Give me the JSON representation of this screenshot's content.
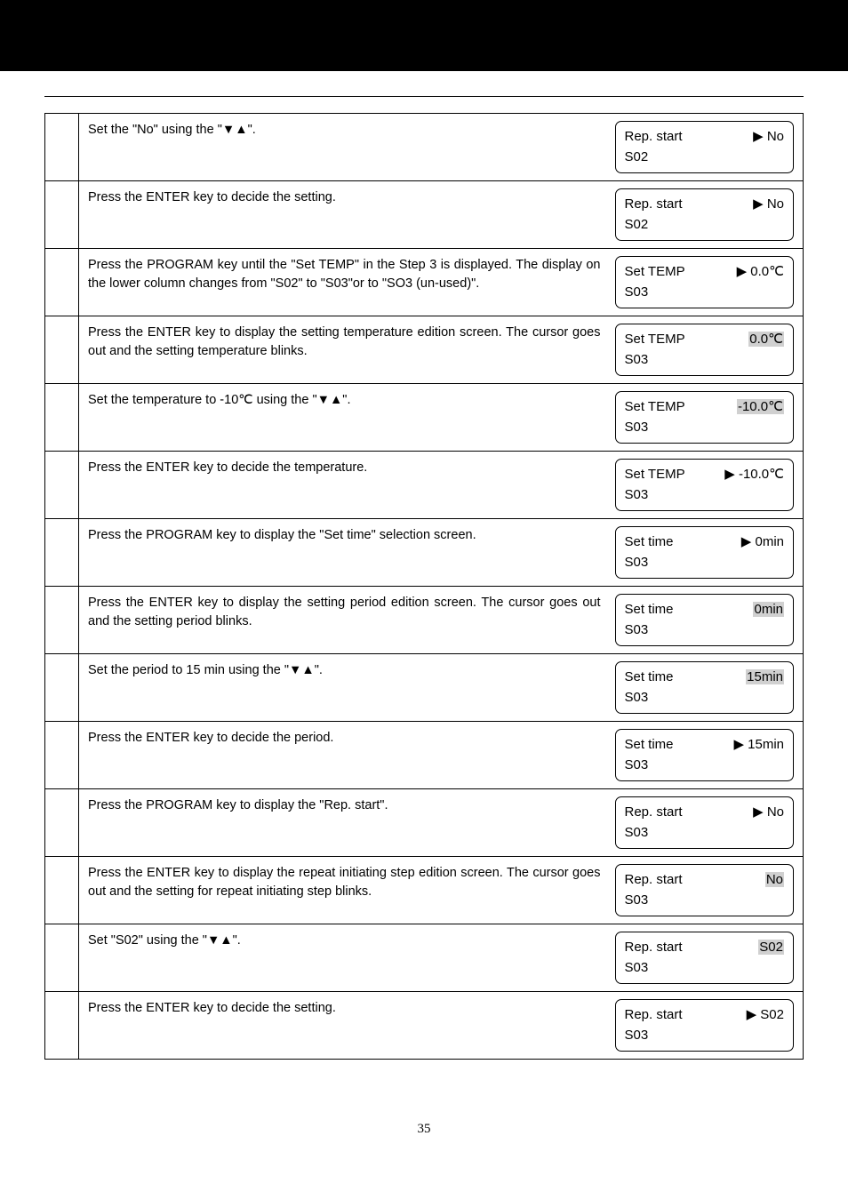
{
  "page_number": "35",
  "rows": [
    {
      "instruction": "Set the \"No\" using the \"▼▲\".",
      "display_line1_left": "Rep. start",
      "display_line1_right": "▶ No",
      "display_line2": "S02"
    },
    {
      "instruction": "Press the ENTER key to decide the setting.",
      "display_line1_left": "Rep. start",
      "display_line1_right": "▶ No",
      "display_line2": "S02"
    },
    {
      "instruction": "Press the PROGRAM key until the \"Set TEMP\" in the Step 3 is displayed.   The display on the lower column changes from \"S02\" to \"S03\"or to \"SO3 (un-used)\".",
      "display_line1_left": "Set TEMP",
      "display_line1_right": "▶ 0.0℃",
      "display_line2": "S03"
    },
    {
      "instruction": "Press the ENTER key to display the setting temperature edition screen.   The cursor goes out and the setting temperature blinks.",
      "display_line1_left": "Set TEMP",
      "display_line1_right_hl": "0.0℃",
      "display_line2": "S03"
    },
    {
      "instruction": "Set the temperature to -10℃  using the \"▼▲\".",
      "display_line1_left": "Set TEMP",
      "display_line1_right_hl": "-10.0℃",
      "display_line2": "S03"
    },
    {
      "instruction": "Press the ENTER key to decide the temperature.",
      "display_line1_left": "Set TEMP",
      "display_line1_right": "▶ -10.0℃",
      "display_line2": "S03"
    },
    {
      "instruction": "Press the PROGRAM key to display the \"Set time\" selection screen.",
      "display_line1_left": "Set time",
      "display_line1_right": "▶ 0min",
      "display_line2": "S03"
    },
    {
      "instruction": "Press the ENTER key to display the setting period edition screen. The cursor goes out and the setting period blinks.",
      "display_line1_left": "Set time",
      "display_line1_right_hl": "0min",
      "display_line2": "S03"
    },
    {
      "instruction": "Set the period to 15 min using the \"▼▲\".",
      "display_line1_left": "Set time",
      "display_line1_right_hl": "15min",
      "display_line2": "S03"
    },
    {
      "instruction": "Press the ENTER key to decide the period.",
      "display_line1_left": "Set time",
      "display_line1_right": "▶ 15min",
      "display_line2": "S03"
    },
    {
      "instruction": "Press the PROGRAM key to display the \"Rep. start\".",
      "display_line1_left": "Rep. start",
      "display_line1_right": "▶ No",
      "display_line2": "S03"
    },
    {
      "instruction": "Press the ENTER key to display the repeat initiating step edition screen.   The cursor goes out and the setting for repeat initiating step blinks.",
      "display_line1_left": "Rep. start",
      "display_line1_right_hl": "No",
      "display_line2": "S03"
    },
    {
      "instruction": "Set \"S02\" using the \"▼▲\".",
      "display_line1_left": "Rep. start",
      "display_line1_right_hl": "S02",
      "display_line2": "S03"
    },
    {
      "instruction": "Press the ENTER key to decide the setting.",
      "display_line1_left": "Rep. start",
      "display_line1_right": "▶ S02",
      "display_line2": "S03"
    }
  ]
}
